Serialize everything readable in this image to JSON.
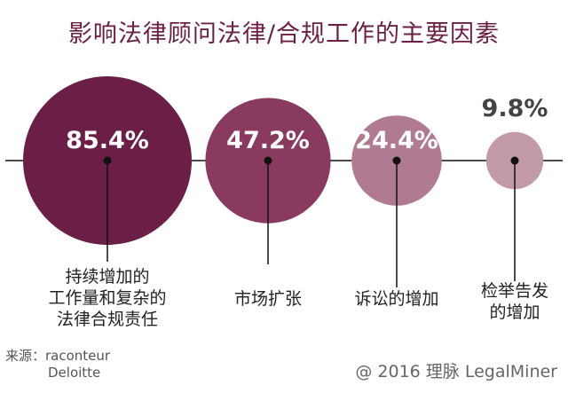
{
  "chart_data": {
    "type": "bubble",
    "title": "影响法律顾问法律/合规工作的主要因素",
    "categories": [
      "持续增加的\n工作量和复杂的\n法律合规责任",
      "市场扩张",
      "诉讼的增加",
      "检举告发\n的增加"
    ],
    "values": [
      85.4,
      47.2,
      24.4,
      9.8
    ],
    "value_labels": [
      "85.4%",
      "47.2%",
      "24.4%",
      "9.8%"
    ],
    "unit": "%",
    "colors": [
      "#6b1f46",
      "#8a3a5e",
      "#b07a92",
      "#c29aaa"
    ]
  },
  "source": {
    "label": "来源：",
    "lines": [
      "raconteur",
      "Deloitte"
    ]
  },
  "credit": "@ 2016 理脉 LegalMiner"
}
